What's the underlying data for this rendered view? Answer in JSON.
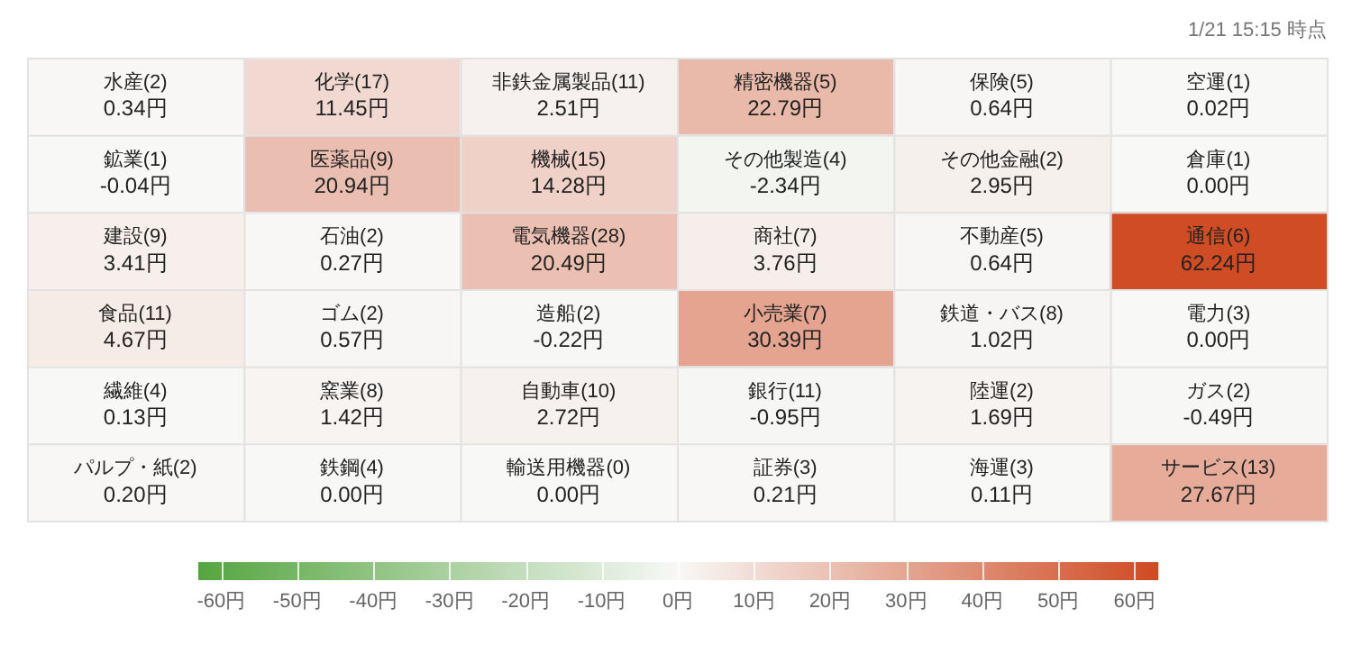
{
  "chart_data": {
    "type": "heatmap",
    "annotations": [
      "1/21 15:15 時点"
    ],
    "categories": [
      null,
      null,
      null,
      null,
      null,
      null
    ],
    "y_categories": [
      null,
      null,
      null,
      null,
      null,
      null
    ],
    "cells": [
      [
        0.34,
        11.45,
        2.51,
        22.79,
        0.64,
        0.02
      ],
      [
        -0.04,
        20.94,
        14.28,
        -2.34,
        2.95,
        0.0
      ],
      [
        3.41,
        0.27,
        20.49,
        3.76,
        0.64,
        62.24
      ],
      [
        4.67,
        0.57,
        -0.22,
        30.39,
        1.02,
        0.0
      ],
      [
        0.13,
        1.42,
        2.72,
        -0.95,
        1.69,
        -0.49
      ],
      [
        0.2,
        0.0,
        0.0,
        0.21,
        0.11,
        27.67
      ]
    ],
    "cell_labels": [
      [
        "水産(2)\n0.34円",
        "化学(17)\n11.45円",
        "非鉄金属製品(11)\n2.51円",
        "精密機器(5)\n22.79円",
        "保険(5)\n0.64円",
        "空運(1)\n0.02円"
      ],
      [
        "鉱業(1)\n-0.04円",
        "医薬品(9)\n20.94円",
        "機械(15)\n14.28円",
        "その他製造(4)\n-2.34円",
        "その他金融(2)\n2.95円",
        "倉庫(1)\n0.00円"
      ],
      [
        "建設(9)\n3.41円",
        "石油(2)\n0.27円",
        "電気機器(28)\n20.49円",
        "商社(7)\n3.76円",
        "不動産(5)\n0.64円",
        "通信(6)\n62.24円"
      ],
      [
        "食品(11)\n4.67円",
        "ゴム(2)\n0.57円",
        "造船(2)\n-0.22円",
        "小売業(7)\n30.39円",
        "鉄道・バス(8)\n1.02円",
        "電力(3)\n0.00円"
      ],
      [
        "繊維(4)\n0.13円",
        "窯業(8)\n1.42円",
        "自動車(10)\n2.72円",
        "銀行(11)\n-0.95円",
        "陸運(2)\n1.69円",
        "ガス(2)\n-0.49円"
      ],
      [
        "パルプ・紙(2)\n0.20円",
        "鉄鋼(4)\n0.00円",
        "輸送用機器(0)\n0.00円",
        "証券(3)\n0.21円",
        "海運(3)\n0.11円",
        "サービス(13)\n27.67円"
      ]
    ],
    "clim": [
      -63,
      63
    ],
    "cticks": [
      {
        "value": -60,
        "label": "-60円"
      },
      {
        "value": -50,
        "label": "-50円"
      },
      {
        "value": -40,
        "label": "-40円"
      },
      {
        "value": -30,
        "label": "-30円"
      },
      {
        "value": -20,
        "label": "-20円"
      },
      {
        "value": -10,
        "label": "-10円"
      },
      {
        "value": 0,
        "label": "0円"
      },
      {
        "value": 10,
        "label": "10円"
      },
      {
        "value": 20,
        "label": "20円"
      },
      {
        "value": 30,
        "label": "30円"
      },
      {
        "value": 40,
        "label": "40円"
      },
      {
        "value": 50,
        "label": "50円"
      },
      {
        "value": 60,
        "label": "60円"
      }
    ]
  }
}
